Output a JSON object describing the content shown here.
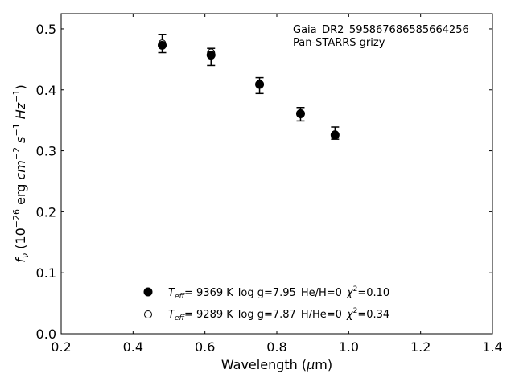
{
  "chart_data": {
    "type": "scatter",
    "xlabel": "Wavelength (μm)",
    "ylabel": "f_ν (10^-26 erg cm^-2 s^-1 Hz^-1)",
    "xlim": [
      0.2,
      1.4
    ],
    "ylim": [
      0.0,
      0.525
    ],
    "x_ticks": [
      "0.2",
      "0.4",
      "0.6",
      "0.8",
      "1.0",
      "1.2",
      "1.4"
    ],
    "y_ticks": [
      "0.0",
      "0.1",
      "0.2",
      "0.3",
      "0.4",
      "0.5"
    ],
    "x_tick_values": [
      0.2,
      0.4,
      0.6,
      0.8,
      1.0,
      1.2,
      1.4
    ],
    "y_tick_values": [
      0.0,
      0.1,
      0.2,
      0.3,
      0.4,
      0.5
    ],
    "annotation_lines": [
      "Gaia_DR2_595867686585664256",
      "Pan-STARRS grizy"
    ],
    "grid": false,
    "legend_position": "bottom-center",
    "observed": {
      "x": [
        0.481,
        0.617,
        0.752,
        0.866,
        0.962
      ],
      "y": [
        0.476,
        0.454,
        0.407,
        0.36,
        0.329
      ],
      "err": [
        0.015,
        0.014,
        0.013,
        0.011,
        0.01
      ]
    },
    "series": [
      {
        "name": "Teff= 9369 K log g=7.95 He/H=0 χ2=0.10",
        "marker": "filled",
        "x": [
          0.481,
          0.617,
          0.752,
          0.866,
          0.962
        ],
        "y": [
          0.473,
          0.457,
          0.409,
          0.361,
          0.326
        ]
      },
      {
        "name": "Teff= 9289 K log g=7.87 H/He=0 χ2=0.34",
        "marker": "open",
        "x": [
          0.481,
          0.617,
          0.752,
          0.866,
          0.962
        ],
        "y": [
          0.476,
          0.461,
          0.409,
          0.36,
          0.327
        ]
      }
    ],
    "legend": [
      {
        "teff_label": "T",
        "teff_sub": "eff",
        "teff_value": "=  9369 K",
        "logg": "log g=7.95",
        "comp": "He/H=0",
        "chi_label": "χ",
        "chi_sup": "2",
        "chi_value": "=0.10"
      },
      {
        "teff_label": "T",
        "teff_sub": "eff",
        "teff_value": "=  9289 K",
        "logg": "log g=7.87",
        "comp": "H/He=0",
        "chi_label": "χ",
        "chi_sup": "2",
        "chi_value": "=0.34"
      }
    ],
    "ylabel_parts": {
      "f": "f",
      "nu": "ν",
      "open": " (10",
      "exp1": "−26",
      "erg": " erg ",
      "cm": "cm",
      "exp2": "−2",
      "s": " s",
      "exp3": "−1",
      "hz": " Hz",
      "exp4": "−1",
      "close": ")"
    },
    "xlabel_parts": {
      "pre": "Wavelength (",
      "mu": "μ",
      "post": "m)"
    }
  }
}
